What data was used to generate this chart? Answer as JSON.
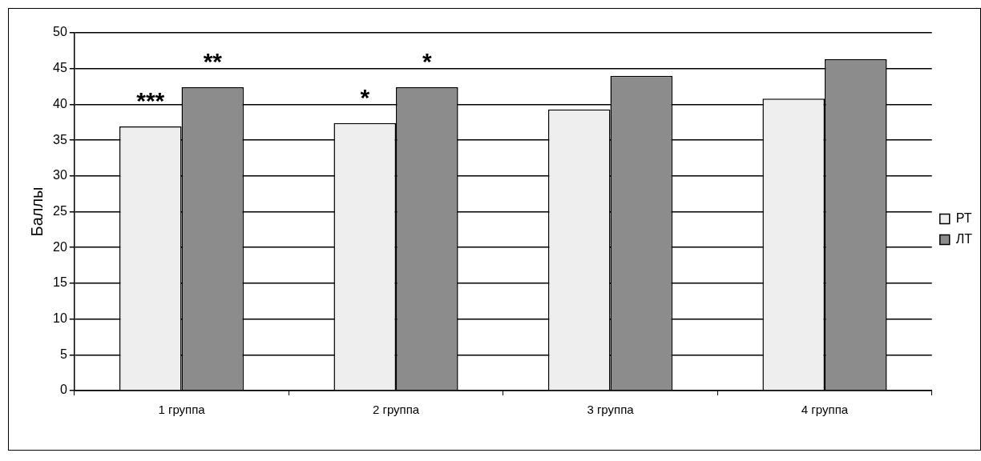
{
  "chart_data": {
    "type": "bar",
    "ylabel": "Баллы",
    "categories": [
      "1 группа",
      "2 группа",
      "3 группа",
      "4 группа"
    ],
    "series": [
      {
        "name": "РТ",
        "color": "#eeeeee",
        "values": [
          36.9,
          37.4,
          39.3,
          40.8
        ]
      },
      {
        "name": "ЛТ",
        "color": "#8c8c8c",
        "values": [
          42.4,
          42.4,
          44.0,
          46.3
        ]
      }
    ],
    "ylim": [
      0,
      50
    ],
    "yticks": [
      0,
      5,
      10,
      15,
      20,
      25,
      30,
      35,
      40,
      45,
      50
    ],
    "grid": "y",
    "legend": "right",
    "annotations": [
      {
        "text": "***",
        "x": "1 группа",
        "y": 36.9
      },
      {
        "text": "**",
        "x": "1 группа",
        "y": 42.4
      },
      {
        "text": "*",
        "x": "2 группа",
        "y": 37.4
      },
      {
        "text": "*",
        "x": "2 группа",
        "y": 42.4
      }
    ]
  }
}
